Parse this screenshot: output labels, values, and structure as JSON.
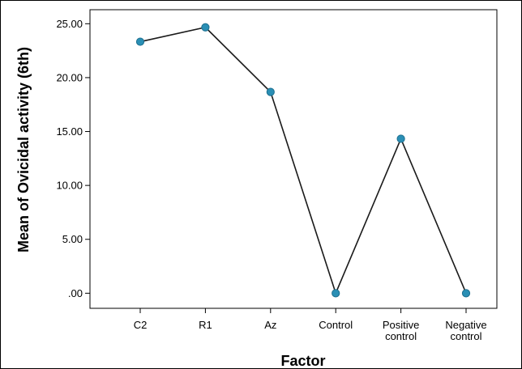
{
  "chart_data": {
    "type": "line",
    "xlabel": "Factor",
    "ylabel": "Mean of Ovicidal activity (6th)",
    "categories": [
      [
        "C2"
      ],
      [
        "R1"
      ],
      [
        "Az"
      ],
      [
        "Control"
      ],
      [
        "Positive",
        "control"
      ],
      [
        "Negative",
        "control"
      ]
    ],
    "series": [
      {
        "values": [
          23.33,
          24.67,
          18.67,
          0.0,
          14.33,
          0.0
        ]
      }
    ],
    "yticks": [
      ".00",
      "5.00",
      "10.00",
      "15.00",
      "20.00",
      "25.00"
    ],
    "ytick_values": [
      0,
      5,
      10,
      15,
      20,
      25
    ],
    "ylim": [
      -1.4,
      26.3
    ],
    "grid": false,
    "line_color": "#1a1a1a",
    "marker_color": "#2a8fb5"
  }
}
